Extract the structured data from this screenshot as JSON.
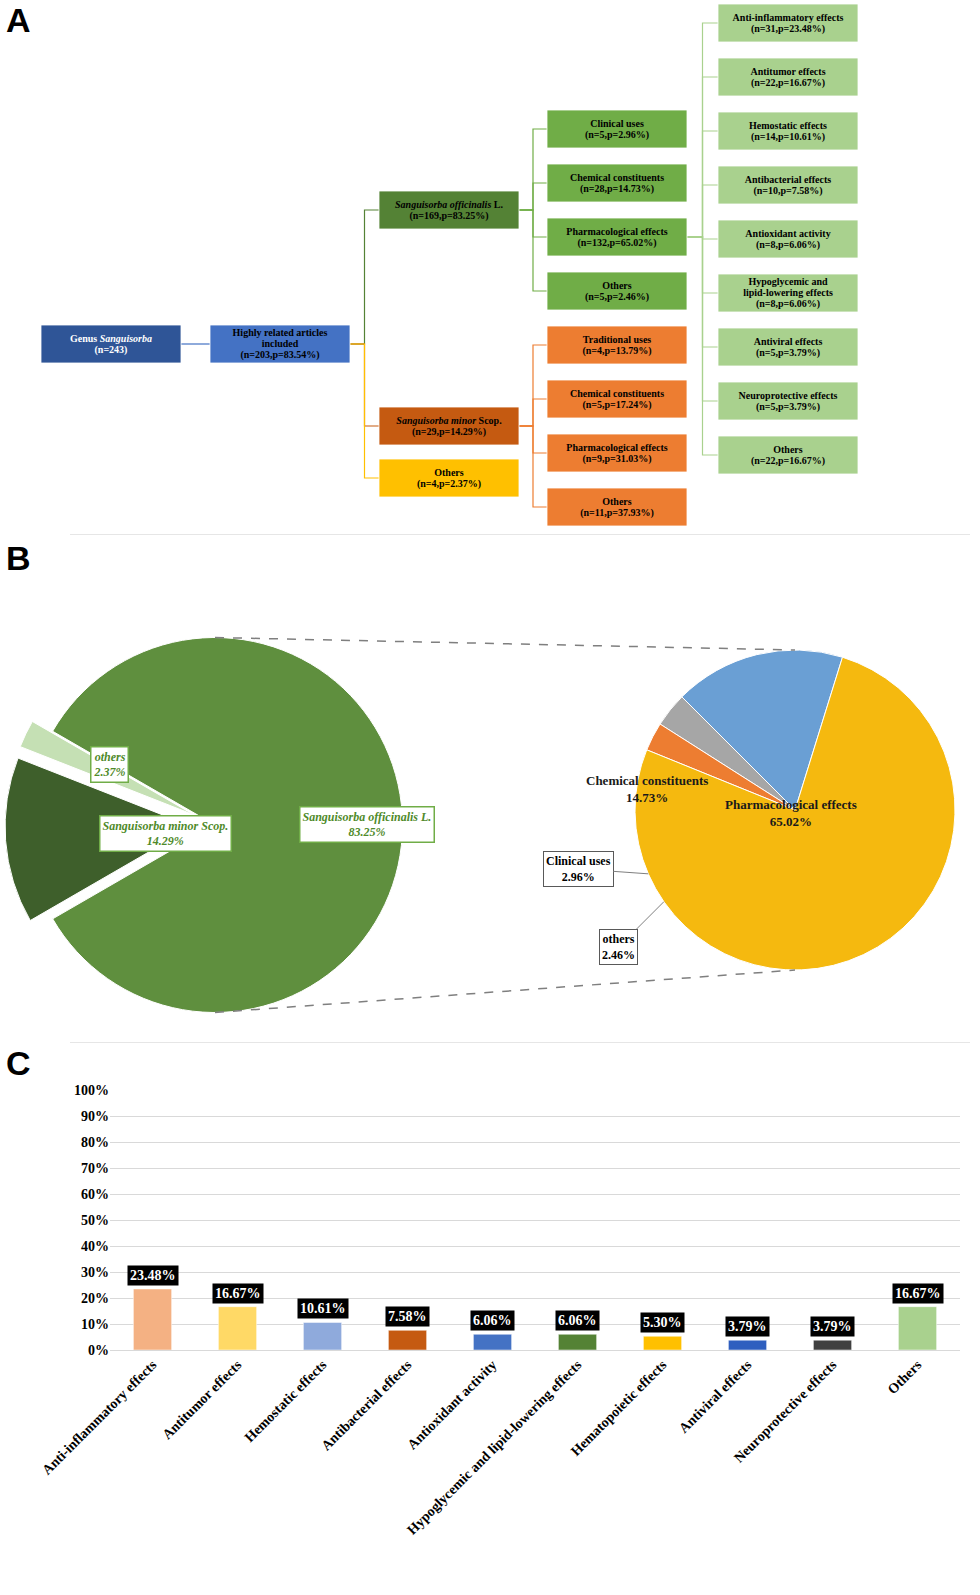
{
  "panels": [
    "A",
    "B",
    "C"
  ],
  "diagram": {
    "root": {
      "label": "Genus Sanguisorba",
      "italic": "Sanguisorba",
      "stats": "(n=243)",
      "color": "#2f5597",
      "children": [
        {
          "label": "Highly related articles included",
          "stats": "(n=203,p=83.54%)",
          "color": "#4472c4",
          "children": [
            {
              "label": "Sanguisorba officinalis L.",
              "italic": "Sanguisorba officinalis",
              "stats": "(n=169,p=83.25%)",
              "color": "#548235",
              "children": [
                {
                  "label": "Clinical uses",
                  "stats": "(n=5,p=2.96%)",
                  "color": "#70ad47"
                },
                {
                  "label": "Chemical constituents",
                  "stats": "(n=28,p=14.73%)",
                  "color": "#70ad47"
                },
                {
                  "label": "Pharmacological effects",
                  "stats": "(n=132,p=65.02%)",
                  "color": "#70ad47",
                  "children": [
                    {
                      "label": "Anti-inflammatory effects",
                      "stats": "(n=31,p=23.48%)",
                      "color": "#a9d18e"
                    },
                    {
                      "label": "Antitumor effects",
                      "stats": "(n=22,p=16.67%)",
                      "color": "#a9d18e"
                    },
                    {
                      "label": "Hemostatic effects",
                      "stats": "(n=14,p=10.61%)",
                      "color": "#a9d18e"
                    },
                    {
                      "label": "Antibacterial effects",
                      "stats": "(n=10,p=7.58%)",
                      "color": "#a9d18e"
                    },
                    {
                      "label": "Antioxidant activity",
                      "stats": "(n=8,p=6.06%)",
                      "color": "#a9d18e"
                    },
                    {
                      "label": "Hypoglycemic and lipid-lowering effects",
                      "stats": "(n=8,p=6.06%)",
                      "color": "#a9d18e"
                    },
                    {
                      "label": "Antiviral effects",
                      "stats": "(n=5,p=3.79%)",
                      "color": "#a9d18e"
                    },
                    {
                      "label": "Neuroprotective effects",
                      "stats": "(n=5,p=3.79%)",
                      "color": "#a9d18e"
                    },
                    {
                      "label": "Others",
                      "stats": "(n=22,p=16.67%)",
                      "color": "#a9d18e"
                    }
                  ]
                },
                {
                  "label": "Others",
                  "stats": "(n=5,p=2.46%)",
                  "color": "#70ad47"
                }
              ]
            },
            {
              "label": "Sanguisorba minor Scop.",
              "italic": "Sanguisorba minor",
              "stats": "(n=29,p=14.29%)",
              "color": "#c55a11",
              "children": [
                {
                  "label": "Traditional uses",
                  "stats": "(n=4,p=13.79%)",
                  "color": "#ed7d31"
                },
                {
                  "label": "Chemical constituents",
                  "stats": "(n=5,p=17.24%)",
                  "color": "#ed7d31"
                },
                {
                  "label": "Pharmacological effects",
                  "stats": "(n=9,p=31.03%)",
                  "color": "#ed7d31"
                },
                {
                  "label": "Others",
                  "stats": "(n=11,p=37.93%)",
                  "color": "#ed7d31"
                }
              ]
            },
            {
              "label": "Others",
              "stats": "(n=4,p=2.37%)",
              "color": "#ffc000"
            }
          ]
        }
      ]
    }
  },
  "chart_data": [
    {
      "type": "pie",
      "categories": [
        "Sanguisorba officinalis L.",
        "Sanguisorba minor Scop.",
        "others"
      ],
      "values": [
        83.25,
        14.29,
        2.37
      ],
      "value_labels": [
        "83.25%",
        "14.29%",
        "2.37%"
      ],
      "colors": [
        "#5f8f3e",
        "#3e5f2b",
        "#c5e0b4"
      ],
      "data_labels": true
    },
    {
      "type": "pie",
      "categories": [
        "Chemical constituents",
        "Clinical uses",
        "others",
        "Pharmacological effects"
      ],
      "values": [
        14.73,
        2.96,
        2.46,
        65.02
      ],
      "value_labels": [
        "14.73%",
        "2.96%",
        "2.46%",
        "65.02%"
      ],
      "colors": [
        "#6a9fd4",
        "#a6a6a6",
        "#ed7d31",
        "#f5b90f"
      ],
      "data_labels": true
    },
    {
      "type": "bar",
      "categories": [
        "Anti-inflammatory effects",
        "Antitumor effects",
        "Hemostatic effects",
        "Antibacterial effects",
        "Antioxidant activity",
        "Hypoglycemic and lipid-lowering effects",
        "Hematopoietic effects",
        "Antiviral effects",
        "Neuroprotective effects",
        "Others"
      ],
      "values": [
        23.48,
        16.67,
        10.61,
        7.58,
        6.06,
        6.06,
        5.3,
        3.79,
        3.79,
        16.67
      ],
      "value_labels": [
        "23.48%",
        "16.67%",
        "10.61%",
        "7.58%",
        "6.06%",
        "6.06%",
        "5.30%",
        "3.79%",
        "3.79%",
        "16.67%"
      ],
      "colors": [
        "#f4b183",
        "#ffd966",
        "#8faadc",
        "#c55a11",
        "#4472c4",
        "#548235",
        "#ffc000",
        "#2f5fbf",
        "#404040",
        "#a9d18e"
      ],
      "ylim": [
        0,
        100
      ],
      "yticks": [
        {
          "value": 0,
          "label": "0%"
        },
        {
          "value": 10,
          "label": "10%"
        },
        {
          "value": 20,
          "label": "20%"
        },
        {
          "value": 30,
          "label": "30%"
        },
        {
          "value": 40,
          "label": "40%"
        },
        {
          "value": 50,
          "label": "50%"
        },
        {
          "value": 60,
          "label": "60%"
        },
        {
          "value": 70,
          "label": "70%"
        },
        {
          "value": 80,
          "label": "80%"
        },
        {
          "value": 90,
          "label": "90%"
        },
        {
          "value": 100,
          "label": "100%"
        }
      ],
      "grid": true,
      "data_labels": true
    }
  ]
}
